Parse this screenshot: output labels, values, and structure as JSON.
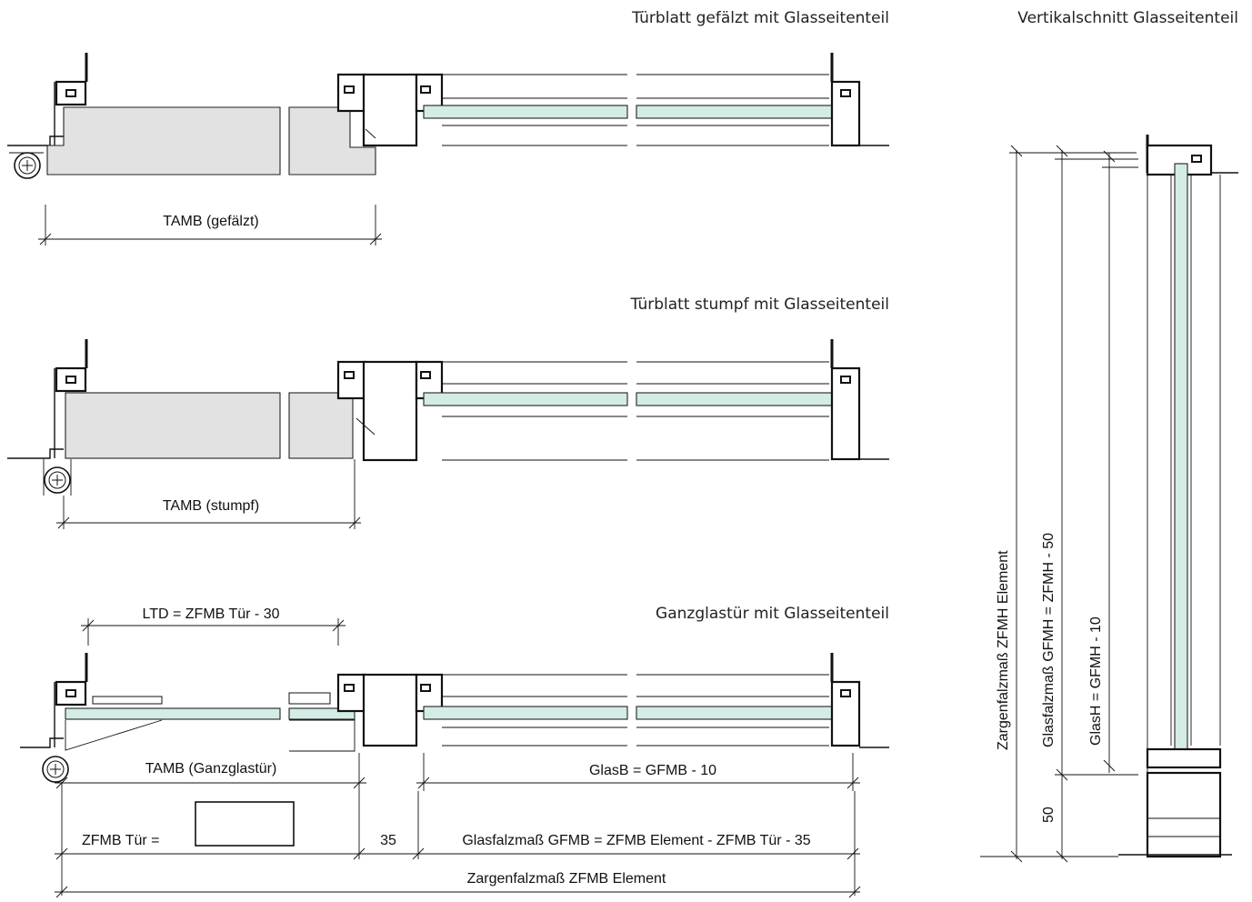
{
  "titles": {
    "section1": "Türblatt gefälzt mit Glasseitenteil",
    "section2": "Türblatt stumpf mit Glasseitenteil",
    "section3": "Ganzglastür mit Glasseitenteil",
    "vertical": "Vertikalschnitt Glasseitenteil"
  },
  "dimensions": {
    "tamb_gefalzt": "TAMB (gefälzt)",
    "tamb_stumpf": "TAMB (stumpf)",
    "ltd": "LTD = ZFMB Tür - 30",
    "tamb_ganzglas": "TAMB (Ganzglastür)",
    "glasb": "GlasB = GFMB - 10",
    "zfmb_tuer": "ZFMB Tür  =",
    "gap_35": "35",
    "gfmb": "Glasfalzmaß GFMB = ZFMB Element - ZFMB Tür - 35",
    "zfmb_element": "Zargenfalzmaß ZFMB Element",
    "zfmh_element": "Zargenfalzmaß ZFMH Element",
    "gfmh": "Glasfalzmaß GFMH = ZFMH - 50",
    "glash": "GlasH = GFMH - 10",
    "h50": "50"
  }
}
